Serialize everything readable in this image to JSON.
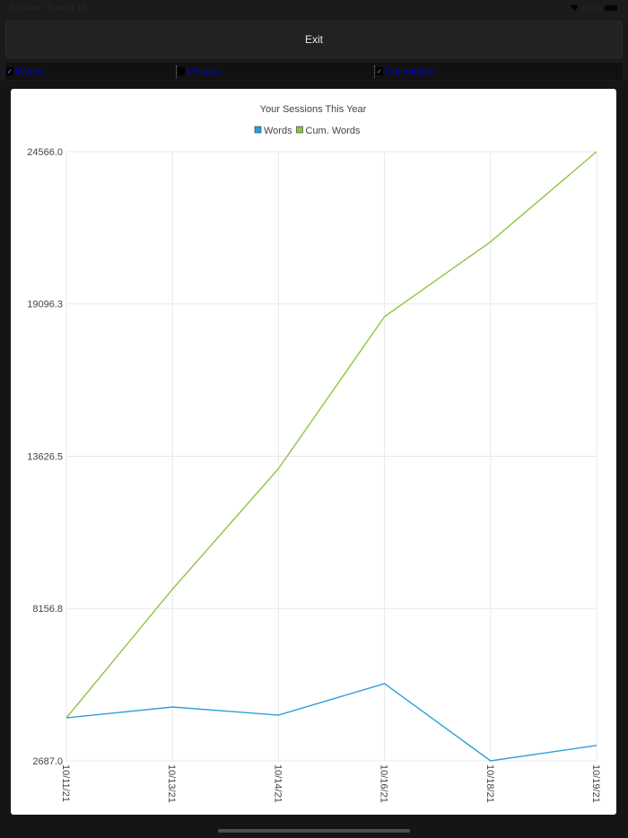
{
  "status_bar": {
    "time": "6:28 PM",
    "date": "Tue Oct 19",
    "battery": "100%"
  },
  "toolbar": {
    "exit_label": "Exit"
  },
  "toggles": [
    {
      "label": "Words",
      "checked": true
    },
    {
      "label": "Minutes",
      "checked": false
    },
    {
      "label": "Cumulative",
      "checked": true
    }
  ],
  "colors": {
    "words": "#2d9fdc",
    "cum_words": "#8cc63f",
    "toggle_text": "#0000d8"
  },
  "chart_data": {
    "type": "line",
    "title": "Your Sessions This Year",
    "xlabel": "",
    "ylabel": "",
    "categories": [
      "10/11/21",
      "10/13/21",
      "10/14/21",
      "10/16/21",
      "10/18/21",
      "10/19/21"
    ],
    "series": [
      {
        "name": "Words",
        "color": "#2d9fdc",
        "values": [
          4230,
          4620,
          4330,
          5460,
          2687,
          3239
        ]
      },
      {
        "name": "Cum. Words",
        "color": "#8cc63f",
        "values": [
          4230,
          8850,
          13180,
          18640,
          21327,
          24566
        ]
      }
    ],
    "y_ticks": [
      "24566.0",
      "19096.3",
      "13626.5",
      "8156.8",
      "2687.0"
    ],
    "ylim": [
      2687.0,
      24566.0
    ],
    "grid": true,
    "legend_position": "top"
  }
}
